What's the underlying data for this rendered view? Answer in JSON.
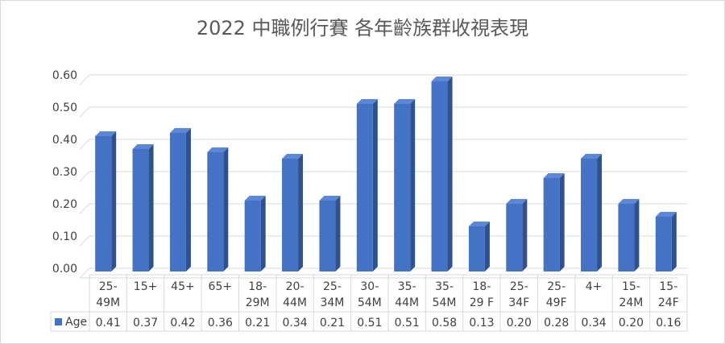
{
  "chart_data": {
    "type": "bar",
    "title": "2022 中職例行賽 各年齡族群收視表現",
    "categories": [
      [
        "25-",
        "49M"
      ],
      [
        "15+"
      ],
      [
        "45+"
      ],
      [
        "65+"
      ],
      [
        "18-",
        "29M"
      ],
      [
        "20-",
        "44M"
      ],
      [
        "25-",
        "34M"
      ],
      [
        "30-",
        "54M"
      ],
      [
        "35-",
        "44M"
      ],
      [
        "35-",
        "54M"
      ],
      [
        "18-",
        "29 F"
      ],
      [
        "25-",
        "34F"
      ],
      [
        "25-",
        "49F"
      ],
      [
        "4+"
      ],
      [
        "15-",
        "24M"
      ],
      [
        "15-",
        "24F"
      ]
    ],
    "series": [
      {
        "name": "Age",
        "values": [
          0.41,
          0.37,
          0.42,
          0.36,
          0.21,
          0.34,
          0.21,
          0.51,
          0.51,
          0.58,
          0.13,
          0.2,
          0.28,
          0.34,
          0.2,
          0.16
        ],
        "labels": [
          "0.41",
          "0.37",
          "0.42",
          "0.36",
          "0.21",
          "0.34",
          "0.21",
          "0.51",
          "0.51",
          "0.58",
          "0.13",
          "0.20",
          "0.28",
          "0.34",
          "0.20",
          "0.16"
        ]
      }
    ],
    "ylim": [
      0,
      0.6
    ],
    "yticks": [
      "0.00",
      "0.10",
      "0.20",
      "0.30",
      "0.40",
      "0.50",
      "0.60"
    ],
    "grid": true,
    "data_table": true,
    "colors": {
      "bar_front": "#4472c4",
      "bar_side": "#2f528f",
      "bar_top": "#5b87d6",
      "grid": "#d9d9d9",
      "text": "#404040"
    }
  }
}
